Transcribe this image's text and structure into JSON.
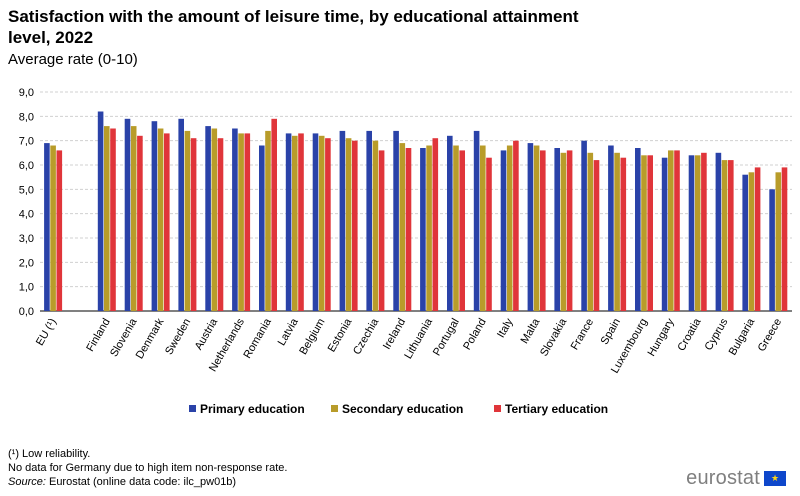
{
  "title": "Satisfaction with the amount of leisure time, by educational attainment level, 2022",
  "subtitle": "Average rate (0-10)",
  "footnotes": {
    "note1": "(¹) Low reliability.",
    "note2": "No data for Germany due to high item non-response rate.",
    "source_label": "Source:",
    "source_text": " Eurostat (online data code: ilc_pw01b)"
  },
  "logo_text": "eurostat",
  "chart_data": {
    "type": "bar",
    "title": "Satisfaction with the amount of leisure time, by educational attainment level, 2022",
    "subtitle": "Average rate (0-10)",
    "ylim": [
      0,
      9
    ],
    "yticks": [
      "0,0",
      "1,0",
      "2,0",
      "3,0",
      "4,0",
      "5,0",
      "6,0",
      "7,0",
      "8,0",
      "9,0"
    ],
    "grid": true,
    "legend_position": "bottom",
    "categories": [
      "EU (¹)",
      "Finland",
      "Slovenia",
      "Denmark",
      "Sweden",
      "Austria",
      "Netherlands",
      "Romania",
      "Latvia",
      "Belgium",
      "Estonia",
      "Czechia",
      "Ireland",
      "Lithuania",
      "Portugal",
      "Poland",
      "Italy",
      "Malta",
      "Slovakia",
      "France",
      "Spain",
      "Luxembourg",
      "Hungary",
      "Croatia",
      "Cyprus",
      "Bulgaria",
      "Greece"
    ],
    "series": [
      {
        "name": "Primary education",
        "color": "#2a42a8",
        "values": [
          6.9,
          8.2,
          7.9,
          7.8,
          7.9,
          7.6,
          7.5,
          6.8,
          7.3,
          7.3,
          7.4,
          7.4,
          7.4,
          6.7,
          7.2,
          7.4,
          6.6,
          6.9,
          6.7,
          7.0,
          6.8,
          6.7,
          6.3,
          6.4,
          6.5,
          5.6,
          5.0
        ]
      },
      {
        "name": "Secondary education",
        "color": "#b89c2a",
        "values": [
          6.8,
          7.6,
          7.6,
          7.5,
          7.4,
          7.5,
          7.3,
          7.4,
          7.2,
          7.2,
          7.1,
          7.0,
          6.9,
          6.8,
          6.8,
          6.8,
          6.8,
          6.8,
          6.5,
          6.5,
          6.5,
          6.4,
          6.6,
          6.4,
          6.2,
          5.7,
          5.7
        ]
      },
      {
        "name": "Tertiary education",
        "color": "#e0353a",
        "values": [
          6.6,
          7.5,
          7.2,
          7.3,
          7.1,
          7.1,
          7.3,
          7.9,
          7.3,
          7.1,
          7.0,
          6.6,
          6.7,
          7.1,
          6.6,
          6.3,
          7.0,
          6.6,
          6.6,
          6.2,
          6.3,
          6.4,
          6.6,
          6.5,
          6.2,
          5.9,
          5.9
        ]
      }
    ]
  }
}
